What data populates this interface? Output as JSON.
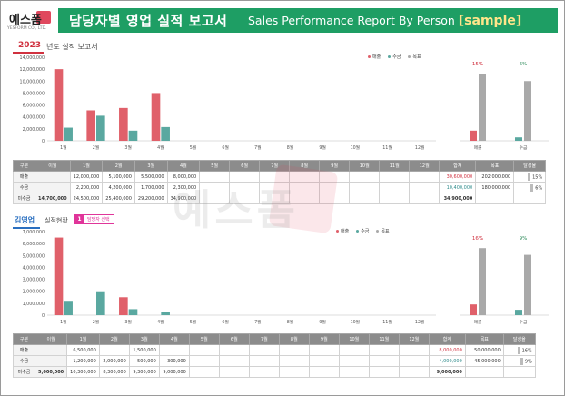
{
  "logo": {
    "text": "예스폼",
    "sub": "YESFORM CO., LTD."
  },
  "banner": {
    "title_ko": "담당자별 영업 실적 보고서",
    "title_en": "Sales Performance Report By Person",
    "sample": "[sample]"
  },
  "report": {
    "year": "2023",
    "year_title": "년도 실적 보고서"
  },
  "person": {
    "name": "김영업",
    "title": "실적현황",
    "select_num": "1",
    "select_label": "담당자 선택"
  },
  "legend": {
    "sales": "매출",
    "collect": "수금",
    "target": "목표"
  },
  "colors": {
    "sales": "#e0606a",
    "collect": "#5aa8a0",
    "target": "#a9a9a9"
  },
  "watermark": "예스폼",
  "chart_data": [
    {
      "type": "bar",
      "categories": [
        "1월",
        "2월",
        "3월",
        "4월",
        "5월",
        "6월",
        "7월",
        "8월",
        "9월",
        "10월",
        "11월",
        "12월"
      ],
      "series": [
        {
          "name": "매출",
          "values": [
            12000000,
            5100000,
            5500000,
            8000000,
            0,
            0,
            0,
            0,
            0,
            0,
            0,
            0
          ]
        },
        {
          "name": "수금",
          "values": [
            2200000,
            4200000,
            1700000,
            2300000,
            0,
            0,
            0,
            0,
            0,
            0,
            0,
            0
          ]
        }
      ],
      "ylim": [
        0,
        14000000
      ],
      "yticks": [
        "14,000,000",
        "12,000,000",
        "10,000,000",
        "8,000,000",
        "6,000,000",
        "4,000,000",
        "2,000,000",
        "0"
      ]
    },
    {
      "type": "bar",
      "categories": [
        "매출",
        "수금"
      ],
      "series": [
        {
          "name": "실적",
          "values": [
            30600000,
            10400000
          ]
        },
        {
          "name": "목표",
          "values": [
            202000000,
            180000000
          ]
        }
      ],
      "pct_labels": [
        "15%",
        "6%"
      ]
    },
    {
      "type": "bar",
      "categories": [
        "1월",
        "2월",
        "3월",
        "4월",
        "5월",
        "6월",
        "7월",
        "8월",
        "9월",
        "10월",
        "11월",
        "12월"
      ],
      "series": [
        {
          "name": "매출",
          "values": [
            6500000,
            0,
            1500000,
            0,
            0,
            0,
            0,
            0,
            0,
            0,
            0,
            0
          ]
        },
        {
          "name": "수금",
          "values": [
            1200000,
            2000000,
            500000,
            300000,
            0,
            0,
            0,
            0,
            0,
            0,
            0,
            0
          ]
        }
      ],
      "ylim": [
        0,
        7000000
      ],
      "yticks": [
        "7,000,000",
        "6,000,000",
        "5,000,000",
        "4,000,000",
        "3,000,000",
        "2,000,000",
        "1,000,000",
        "0"
      ]
    },
    {
      "type": "bar",
      "categories": [
        "매출",
        "수금"
      ],
      "series": [
        {
          "name": "실적",
          "values": [
            8000000,
            4000000
          ]
        },
        {
          "name": "목표",
          "values": [
            50000000,
            45000000
          ]
        }
      ],
      "pct_labels": [
        "16%",
        "9%"
      ]
    }
  ],
  "table_header": [
    "구분",
    "이월",
    "1월",
    "2월",
    "3월",
    "4월",
    "5월",
    "6월",
    "7월",
    "8월",
    "9월",
    "10월",
    "11월",
    "12월",
    "합계",
    "목표",
    "달성율"
  ],
  "table1": [
    [
      "매출",
      "",
      "12,000,000",
      "5,100,000",
      "5,500,000",
      "8,000,000",
      "",
      "",
      "",
      "",
      "",
      "",
      "",
      "",
      "30,600,000",
      "202,000,000",
      "15%"
    ],
    [
      "수금",
      "",
      "2,200,000",
      "4,200,000",
      "1,700,000",
      "2,300,000",
      "",
      "",
      "",
      "",
      "",
      "",
      "",
      "",
      "10,400,000",
      "180,000,000",
      "6%"
    ],
    [
      "미수금",
      "14,700,000",
      "24,500,000",
      "25,400,000",
      "29,200,000",
      "34,900,000",
      "",
      "",
      "",
      "",
      "",
      "",
      "",
      "",
      "34,900,000",
      "",
      ""
    ]
  ],
  "table2": [
    [
      "매출",
      "",
      "6,500,000",
      "",
      "1,500,000",
      "",
      "",
      "",
      "",
      "",
      "",
      "",
      "",
      "",
      "8,000,000",
      "50,000,000",
      "16%"
    ],
    [
      "수금",
      "",
      "1,200,000",
      "2,000,000",
      "500,000",
      "300,000",
      "",
      "",
      "",
      "",
      "",
      "",
      "",
      "",
      "4,000,000",
      "45,000,000",
      "9%"
    ],
    [
      "미수금",
      "5,000,000",
      "10,300,000",
      "8,300,000",
      "9,300,000",
      "9,000,000",
      "",
      "",
      "",
      "",
      "",
      "",
      "",
      "",
      "9,000,000",
      "",
      ""
    ]
  ]
}
